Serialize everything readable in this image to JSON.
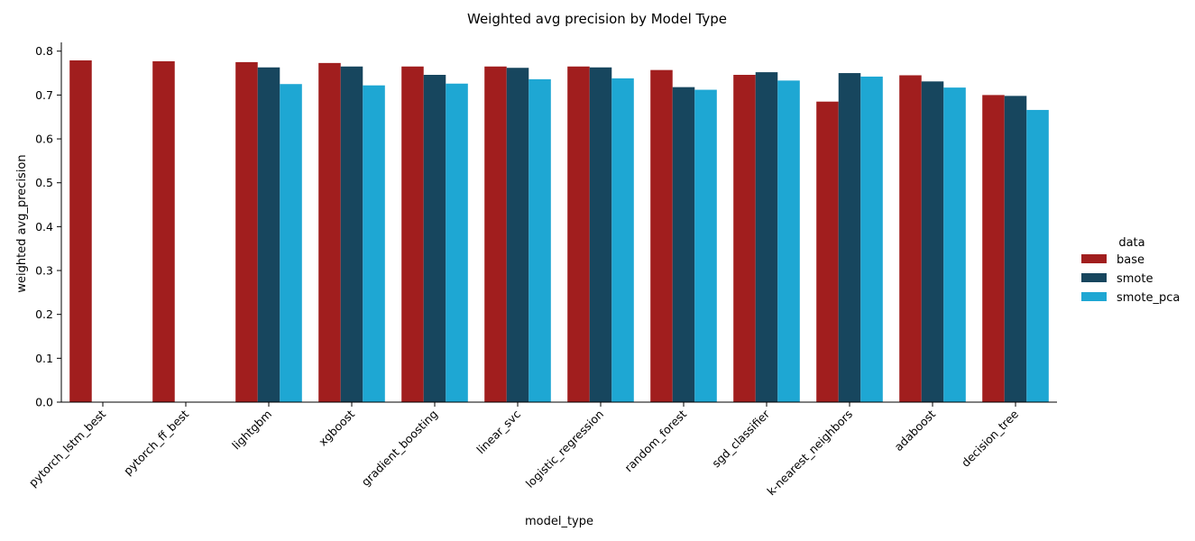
{
  "chart_data": {
    "type": "bar",
    "title": "Weighted avg precision by Model Type",
    "xlabel": "model_type",
    "ylabel": "weighted avg_precision",
    "ylim": [
      0,
      0.82
    ],
    "yticks": [
      0.0,
      0.1,
      0.2,
      0.3,
      0.4,
      0.5,
      0.6,
      0.7,
      0.8
    ],
    "ytick_labels": [
      "0.0",
      "0.1",
      "0.2",
      "0.3",
      "0.4",
      "0.5",
      "0.6",
      "0.7",
      "0.8"
    ],
    "grid": false,
    "legend": {
      "title": "data",
      "placement": "right"
    },
    "categories": [
      "pytorch_lstm_best",
      "pytorch_ff_best",
      "lightgbm",
      "xgboost",
      "gradient_boosting",
      "linear_svc",
      "logistic_regression",
      "random_forest",
      "sgd_classifier",
      "k-nearest_neighbors",
      "adaboost",
      "decision_tree"
    ],
    "series": [
      {
        "name": "base",
        "color": "#a11e1e",
        "values": [
          0.779,
          0.777,
          0.775,
          0.773,
          0.765,
          0.765,
          0.765,
          0.757,
          0.746,
          0.685,
          0.745,
          0.7
        ]
      },
      {
        "name": "smote",
        "color": "#17465e",
        "values": [
          null,
          null,
          0.763,
          0.765,
          0.746,
          0.762,
          0.763,
          0.718,
          0.752,
          0.75,
          0.731,
          0.698
        ]
      },
      {
        "name": "smote_pca",
        "color": "#1ea7d3",
        "values": [
          null,
          null,
          0.725,
          0.722,
          0.726,
          0.736,
          0.738,
          0.712,
          0.733,
          0.742,
          0.717,
          0.666
        ]
      }
    ]
  }
}
